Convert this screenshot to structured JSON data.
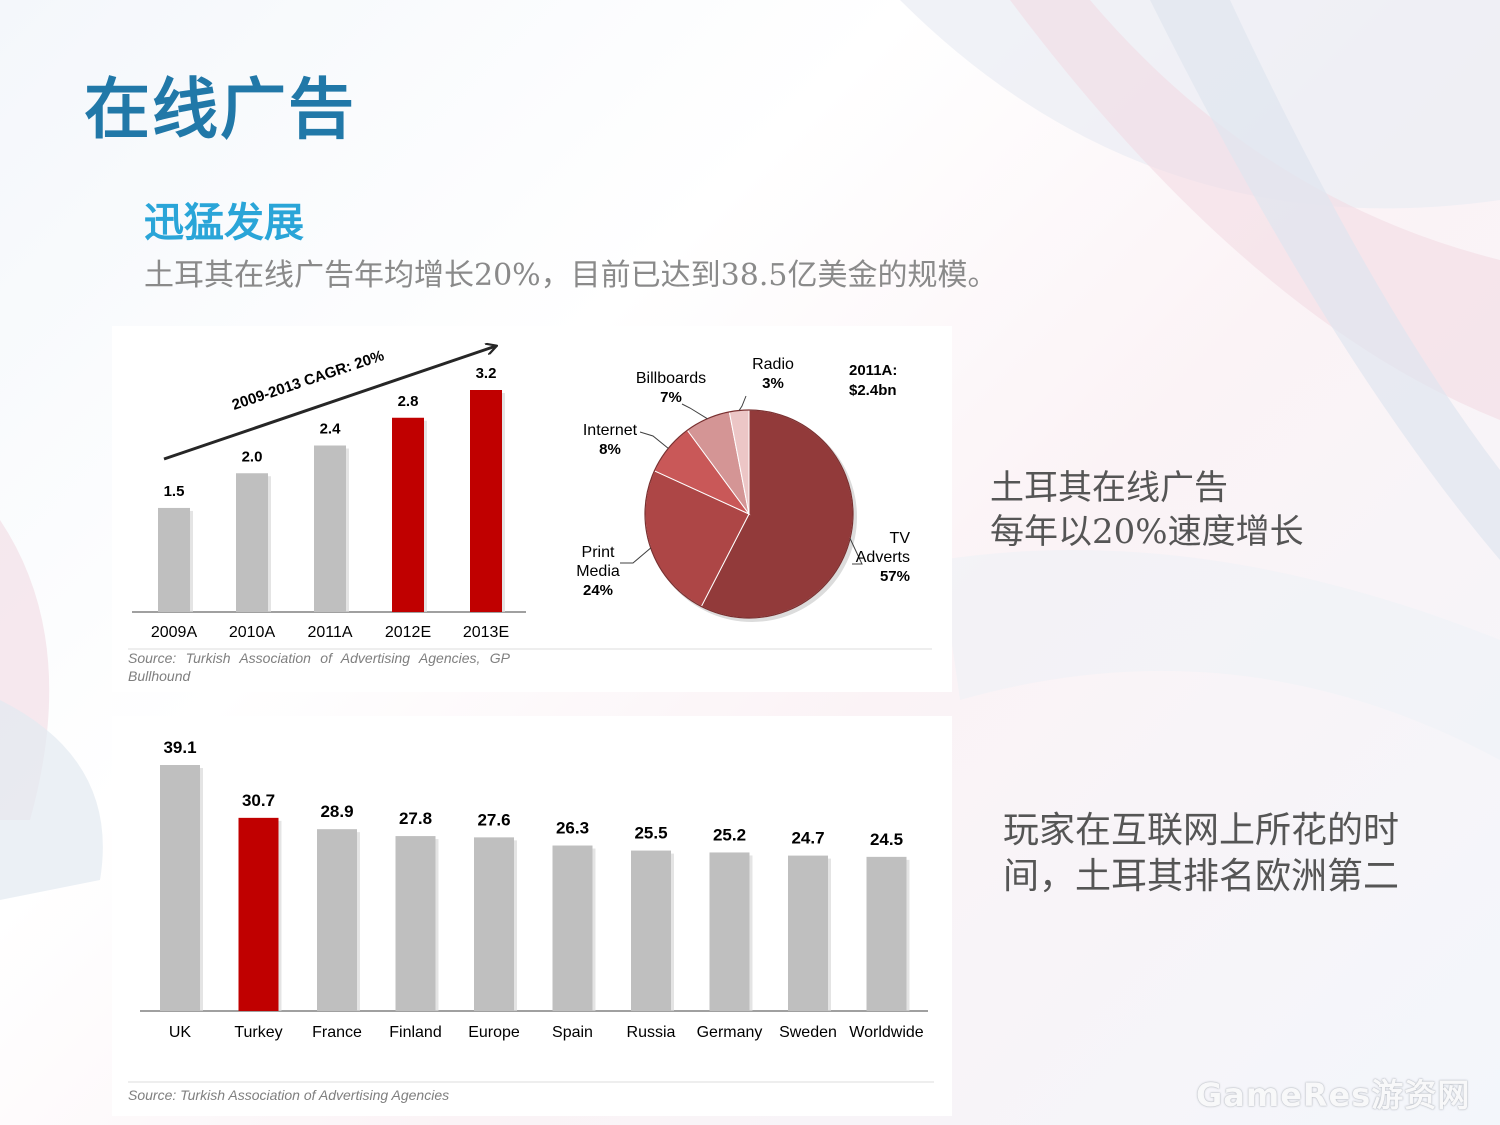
{
  "slide": {
    "title": "在线广告",
    "subtitle": "迅猛发展",
    "intro": "土耳其在线广告年均增长20%，目前已达到38.5亿美金的规模。",
    "note_growth": [
      "土耳其在线广告",
      "每年以20%速度增长"
    ],
    "note_ranking": "玩家在互联网上所花的时间，土耳其排名欧洲第二",
    "watermark": "GameRes游资网",
    "colors": {
      "title": "#2178a8",
      "subtitle": "#2aa5d8",
      "highlight": "#c00000",
      "gray_bar": "#bfbfbf"
    }
  },
  "chart_data": [
    {
      "type": "bar",
      "title": "",
      "categories": [
        "2009A",
        "2010A",
        "2011A",
        "2012E",
        "2013E"
      ],
      "values": [
        1.5,
        2.0,
        2.4,
        2.8,
        3.2
      ],
      "value_labels": [
        "1.5",
        "2.0",
        "2.4",
        "2.8",
        "3.2"
      ],
      "highlight": [
        "2012E",
        "2013E"
      ],
      "annotation": "2009-2013 CAGR: 20%",
      "ylim": [
        0,
        3.2
      ],
      "xlabel": "",
      "ylabel": "",
      "source": "Source:  Turkish  Association  of  Advertising  Agencies,  GP Bullhound"
    },
    {
      "type": "pie",
      "title": "2011A: $2.4bn",
      "title_lines": [
        "2011A:",
        "$2.4bn"
      ],
      "slices": [
        {
          "label": "TV Adverts",
          "label_lines": [
            "TV",
            "Adverts"
          ],
          "value": 57,
          "pct": "57%",
          "color": "#923a3a"
        },
        {
          "label": "Print Media",
          "label_lines": [
            "Print",
            "Media"
          ],
          "value": 24,
          "pct": "24%",
          "color": "#ad4646"
        },
        {
          "label": "Internet",
          "label_lines": [
            "Internet"
          ],
          "value": 8,
          "pct": "8%",
          "color": "#c95858"
        },
        {
          "label": "Billboards",
          "label_lines": [
            "Billboards"
          ],
          "value": 7,
          "pct": "7%",
          "color": "#d49595"
        },
        {
          "label": "Radio",
          "label_lines": [
            "Radio"
          ],
          "value": 3,
          "pct": "3%",
          "color": "#ecc6c6"
        }
      ]
    },
    {
      "type": "bar",
      "title": "",
      "categories": [
        "UK",
        "Turkey",
        "France",
        "Finland",
        "Europe",
        "Spain",
        "Russia",
        "Germany",
        "Sweden",
        "Worldwide"
      ],
      "values": [
        39.1,
        30.7,
        28.9,
        27.8,
        27.6,
        26.3,
        25.5,
        25.2,
        24.7,
        24.5
      ],
      "value_labels": [
        "39.1",
        "30.7",
        "28.9",
        "27.8",
        "27.6",
        "26.3",
        "25.5",
        "25.2",
        "24.7",
        "24.5"
      ],
      "highlight": [
        "Turkey"
      ],
      "ylim": [
        0,
        39.1
      ],
      "xlabel": "",
      "ylabel": "",
      "source": "Source: Turkish Association of Advertising Agencies"
    }
  ]
}
